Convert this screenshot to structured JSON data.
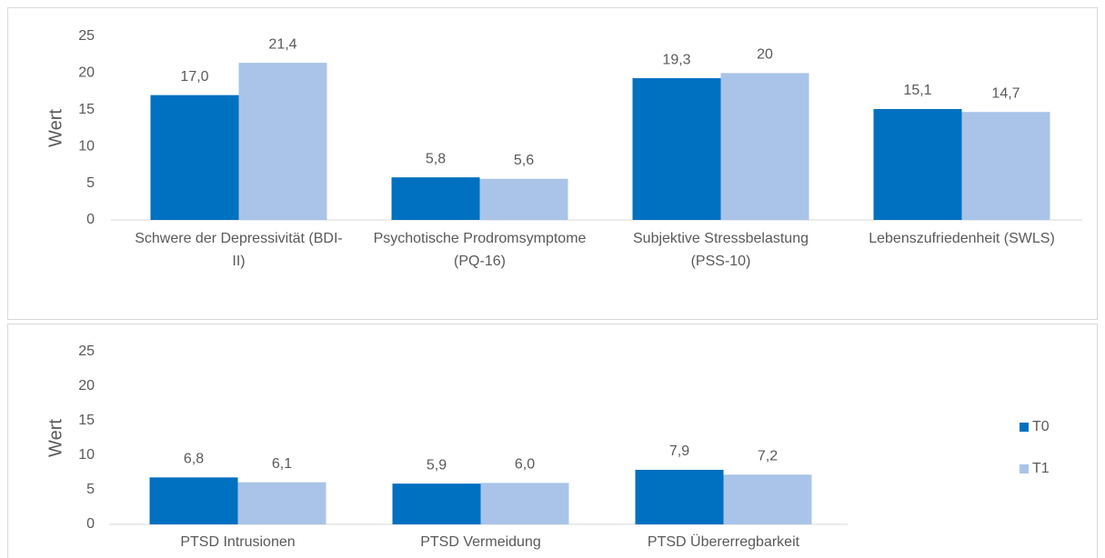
{
  "chart_data": [
    {
      "type": "bar",
      "y_label": "Wert",
      "categories": [
        "Schwere der Depressivität (BDI-II)",
        "Psychotische Prodromsymptome (PQ-16)",
        "Subjektive Stressbelastung (PSS-10)",
        "Lebenszufriedenheit (SWLS)"
      ],
      "series": [
        {
          "color": "#0070c0",
          "values": [
            17.0,
            5.8,
            19.3,
            15.1
          ],
          "value_labels": [
            "17,0",
            "5,8",
            "19,3",
            "15,1"
          ]
        },
        {
          "color": "#a9c4e8",
          "values": [
            21.4,
            5.6,
            20,
            14.7
          ],
          "value_labels": [
            "21,4",
            "5,6",
            "20",
            "14,7"
          ]
        }
      ],
      "ylim": [
        0,
        25
      ],
      "yticks": [
        0,
        5,
        10,
        15,
        20,
        25
      ],
      "grid": false
    },
    {
      "type": "bar",
      "y_label": "Wert",
      "categories": [
        "PTSD Intrusionen",
        "PTSD Vermeidung",
        "PTSD Übererregbarkeit"
      ],
      "series": [
        {
          "name": "T0",
          "color": "#0070c0",
          "values": [
            6.8,
            5.9,
            7.9
          ],
          "value_labels": [
            "6,8",
            "5,9",
            "7,9"
          ]
        },
        {
          "name": "T1",
          "color": "#a9c4e8",
          "values": [
            6.1,
            6.0,
            7.2
          ],
          "value_labels": [
            "6,1",
            "6,0",
            "7,2"
          ]
        }
      ],
      "ylim": [
        0,
        25
      ],
      "yticks": [
        0,
        5,
        10,
        15,
        20,
        25
      ],
      "grid": false,
      "legend": "right"
    }
  ]
}
